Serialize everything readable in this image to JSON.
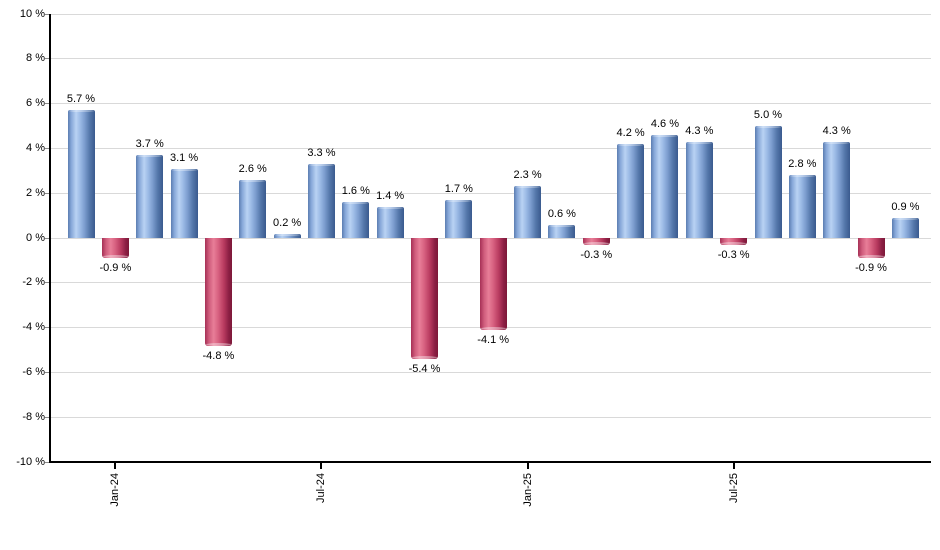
{
  "page": {
    "background": "#ffffff"
  },
  "chart_data": {
    "type": "bar",
    "title": "",
    "unit": "%",
    "values": [
      5.7,
      -0.9,
      3.7,
      3.1,
      -4.8,
      2.6,
      0.2,
      3.3,
      1.6,
      1.4,
      -5.4,
      1.7,
      -4.1,
      2.3,
      0.6,
      -0.3,
      4.2,
      4.6,
      4.3,
      -0.3,
      5.0,
      2.8,
      4.3,
      -0.9,
      0.9
    ],
    "bar_labels": [
      "5.7 %",
      "-0.9 %",
      "3.7 %",
      "3.1 %",
      "-4.8 %",
      "2.6 %",
      "0.2 %",
      "3.3 %",
      "1.6 %",
      "1.4 %",
      "-5.4 %",
      "1.7 %",
      "-4.1 %",
      "2.3 %",
      "0.6 %",
      "-0.3 %",
      "4.2 %",
      "4.6 %",
      "4.3 %",
      "-0.3 %",
      "5.0 %",
      "2.8 %",
      "4.3 %",
      "-0.9 %",
      "0.9 %"
    ],
    "x_ticks": [
      {
        "bar_index": 1,
        "label": "Jan-24"
      },
      {
        "bar_index": 7,
        "label": "Jul-24"
      },
      {
        "bar_index": 13,
        "label": "Jan-25"
      },
      {
        "bar_index": 19,
        "label": "Jul-25"
      }
    ],
    "y_tick_values": [
      10,
      8,
      6,
      4,
      2,
      0,
      -2,
      -4,
      -6,
      -8,
      -10
    ],
    "y_tick_labels": [
      "10 %",
      "8 %",
      "6 %",
      "4 %",
      "2 %",
      "0 %",
      "-2 %",
      "-4 %",
      "-6 %",
      "-8 %",
      "-10 %"
    ],
    "ylim": [
      -10,
      10
    ],
    "grid": true,
    "legend": "none",
    "xlabel": "",
    "ylabel": "",
    "colors": {
      "positive_bar_light": "#b9d2f3",
      "positive_bar_dark": "#3a5a8e",
      "negative_bar_light": "#e87e98",
      "negative_bar_dark": "#8c1f44",
      "gridline": "#d9d9d9",
      "axis": "#000000",
      "label_text": "#000000"
    }
  }
}
